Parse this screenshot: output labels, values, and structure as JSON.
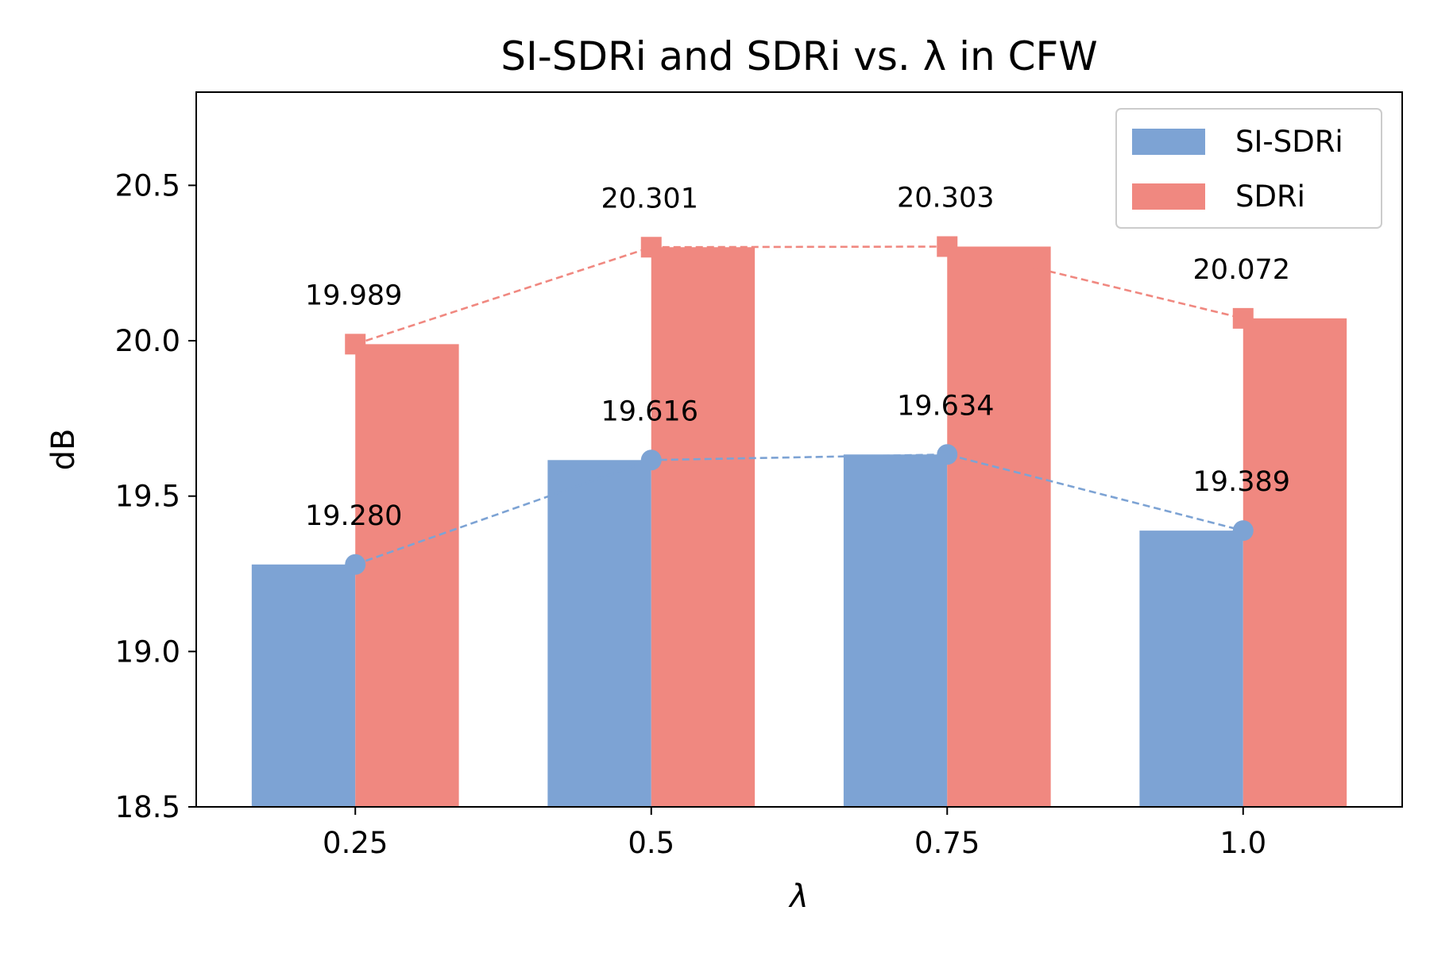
{
  "chart_data": {
    "type": "bar",
    "title": "SI-SDRi and SDRi vs. λ in CFW",
    "xlabel": "λ",
    "ylabel": "dB",
    "categories": [
      "0.25",
      "0.5",
      "0.75",
      "1.0"
    ],
    "ylim": [
      18.5,
      20.8
    ],
    "yticks": [
      "18.5",
      "19.0",
      "19.5",
      "20.0",
      "20.5"
    ],
    "grid": false,
    "legend_position": "top-right",
    "series": [
      {
        "name": "SI-SDRi",
        "values": [
          19.28,
          19.616,
          19.634,
          19.389
        ],
        "labels": [
          "19.280",
          "19.616",
          "19.634",
          "19.389"
        ],
        "color": "#7da3d4",
        "marker": "circle",
        "line_style": "dashed"
      },
      {
        "name": "SDRi",
        "values": [
          19.989,
          20.301,
          20.303,
          20.072
        ],
        "labels": [
          "19.989",
          "20.301",
          "20.303",
          "20.072"
        ],
        "color": "#f08880",
        "marker": "square",
        "line_style": "dashed"
      }
    ]
  }
}
